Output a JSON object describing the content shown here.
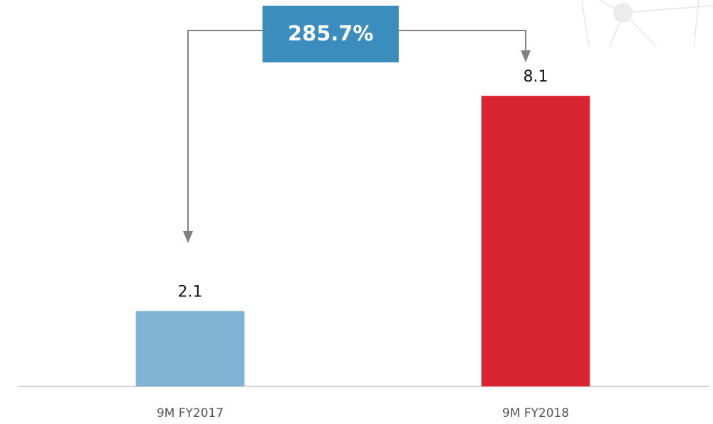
{
  "chart_data": {
    "type": "bar",
    "categories": [
      "9M FY2017",
      "9M FY2018"
    ],
    "values": [
      2.1,
      8.1
    ],
    "colors": [
      "#7fb4d4",
      "#d92532"
    ],
    "annotation": "285.7%"
  }
}
